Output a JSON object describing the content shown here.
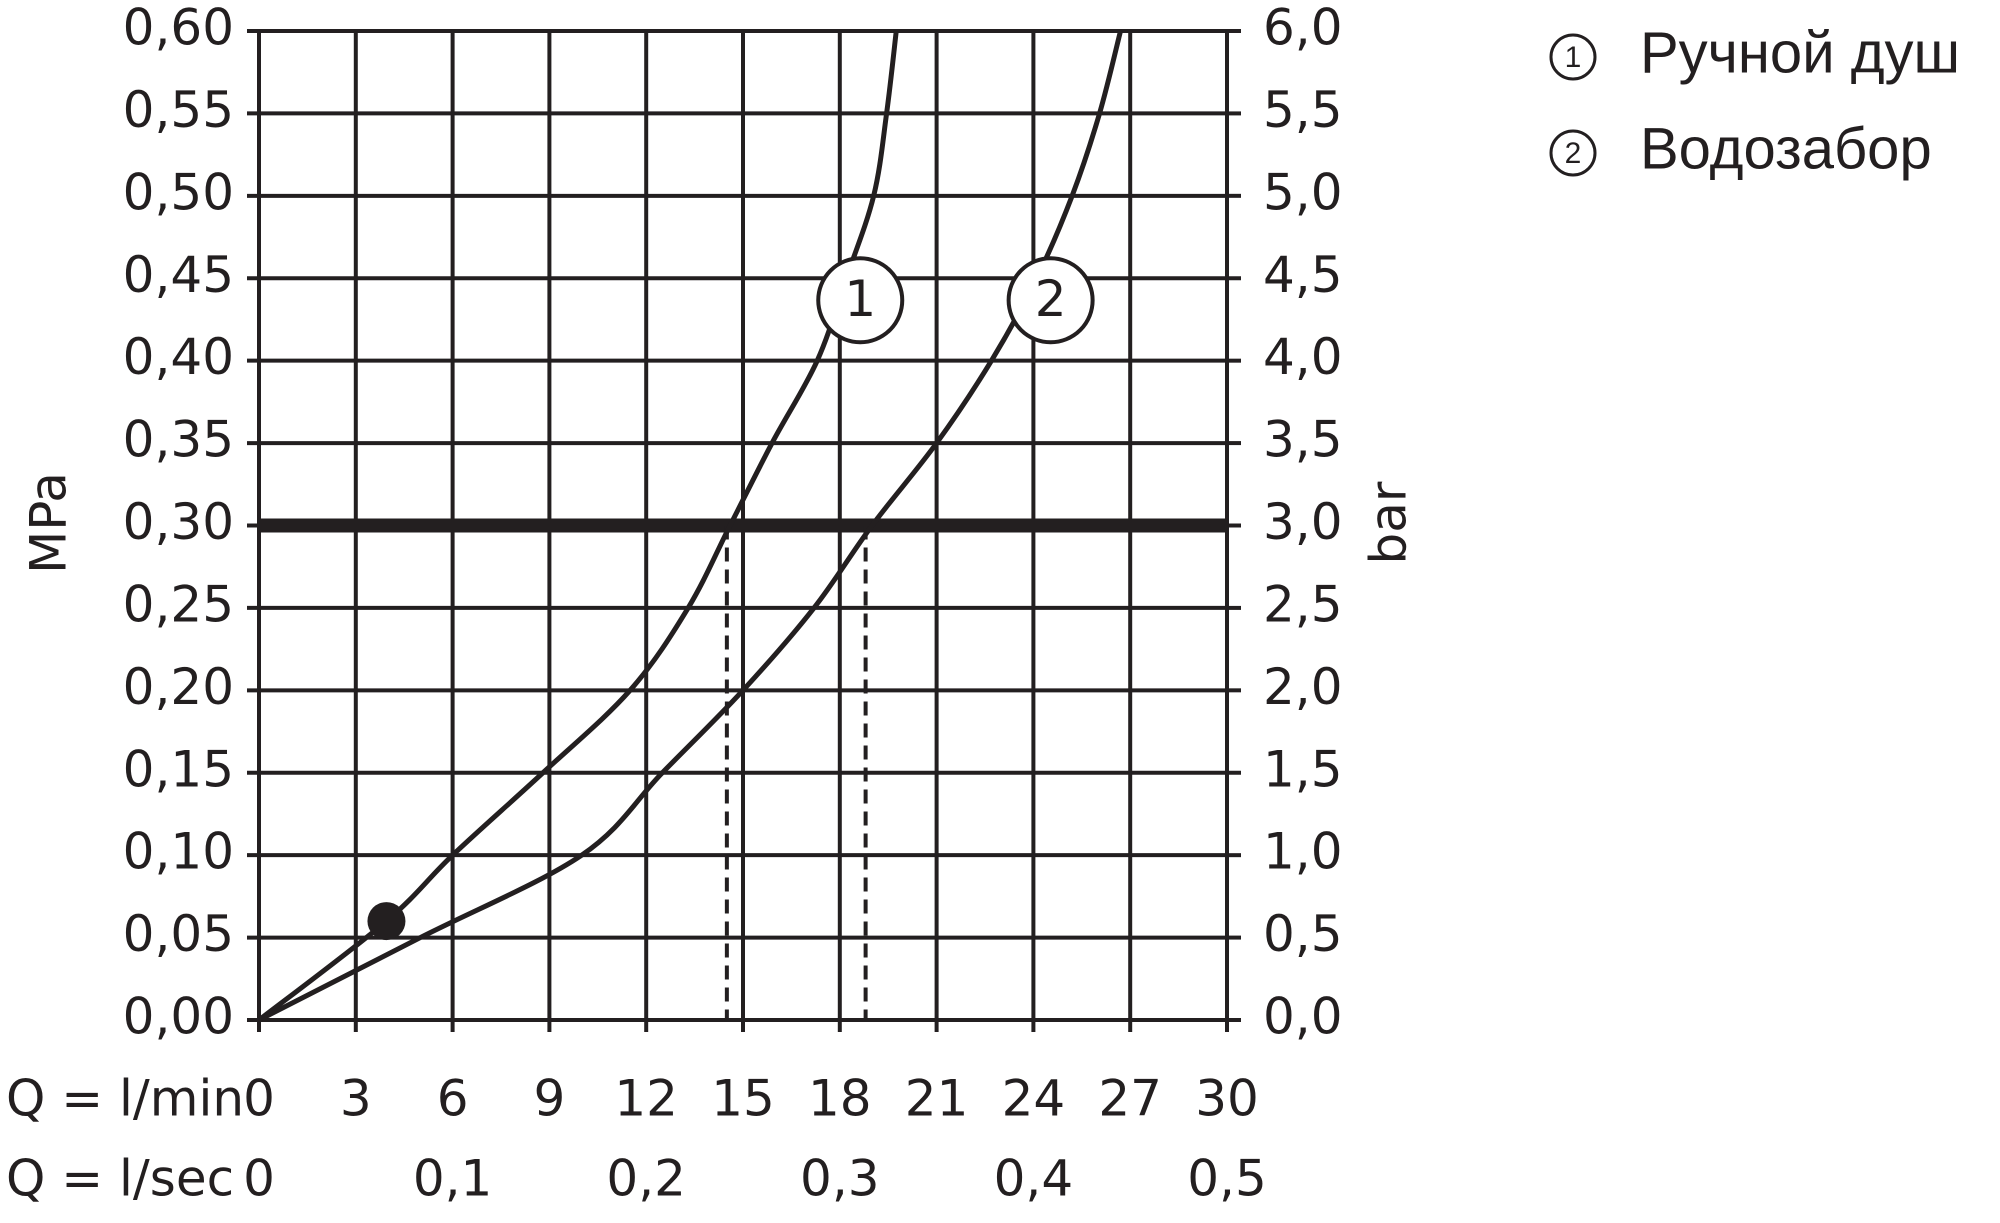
{
  "chart_data": {
    "type": "line",
    "ylabel": "MPa",
    "y2label": "bar",
    "xlabel": "Q = l/min",
    "x2label": "Q = l/sec",
    "xlim": [
      0,
      30
    ],
    "xticks": [
      0,
      3,
      6,
      9,
      12,
      15,
      18,
      21,
      24,
      27,
      30
    ],
    "x2lim": [
      0,
      0.5
    ],
    "x2ticks": [
      0,
      {
        "value": 0.1,
        "label": "0,1"
      },
      {
        "value": 0.2,
        "label": "0,2"
      },
      {
        "value": 0.3,
        "label": "0,3"
      },
      {
        "value": 0.4,
        "label": "0,4"
      },
      {
        "value": 0.5,
        "label": "0,5"
      }
    ],
    "ylim": [
      0,
      0.6
    ],
    "yticks": [
      {
        "value": 0,
        "label": "0,00"
      },
      {
        "value": 0.05,
        "label": "0,05"
      },
      {
        "value": 0.1,
        "label": "0,10"
      },
      {
        "value": 0.15,
        "label": "0,15"
      },
      {
        "value": 0.2,
        "label": "0,20"
      },
      {
        "value": 0.25,
        "label": "0,25"
      },
      {
        "value": 0.3,
        "label": "0,30"
      },
      {
        "value": 0.35,
        "label": "0,35"
      },
      {
        "value": 0.4,
        "label": "0,40"
      },
      {
        "value": 0.45,
        "label": "0,45"
      },
      {
        "value": 0.5,
        "label": "0,50"
      },
      {
        "value": 0.55,
        "label": "0,55"
      },
      {
        "value": 0.6,
        "label": "0,60"
      }
    ],
    "y2lim": [
      0,
      6
    ],
    "y2ticks": [
      {
        "value": 0,
        "label": "0,0"
      },
      {
        "value": 0.5,
        "label": "0,5"
      },
      {
        "value": 1,
        "label": "1,0"
      },
      {
        "value": 1.5,
        "label": "1,5"
      },
      {
        "value": 2,
        "label": "2,0"
      },
      {
        "value": 2.5,
        "label": "2,5"
      },
      {
        "value": 3,
        "label": "3,0"
      },
      {
        "value": 3.5,
        "label": "3,5"
      },
      {
        "value": 4,
        "label": "4,0"
      },
      {
        "value": 4.5,
        "label": "4,5"
      },
      {
        "value": 5,
        "label": "5,0"
      },
      {
        "value": 5.5,
        "label": "5,5"
      },
      {
        "value": 6,
        "label": "6,0"
      }
    ],
    "grid": true,
    "reference_line": 0.3,
    "drop_lines": [
      14.5,
      18.8
    ],
    "point": {
      "x": 3.95,
      "y": 0.06
    },
    "series": [
      {
        "name": "Ручной душ",
        "marker": "1",
        "color": "#231f20",
        "x": [
          0,
          3.95,
          6.0,
          8.8,
          11.5,
          13.3,
          14.6,
          15.9,
          17.3,
          18.2,
          19.05,
          19.45,
          19.75
        ],
        "values": [
          0,
          0.06,
          0.1,
          0.15,
          0.2,
          0.25,
          0.3,
          0.35,
          0.4,
          0.45,
          0.5,
          0.55,
          0.6
        ]
      },
      {
        "name": "Водозабор",
        "marker": "2",
        "color": "#231f20",
        "x": [
          0,
          5.0,
          10.0,
          12.5,
          15.0,
          17.2,
          19.0,
          21.0,
          22.7,
          24.1,
          25.2,
          26.05,
          26.7
        ],
        "values": [
          0,
          0.05,
          0.1,
          0.15,
          0.2,
          0.25,
          0.3,
          0.35,
          0.4,
          0.45,
          0.5,
          0.55,
          0.6
        ]
      }
    ]
  }
}
